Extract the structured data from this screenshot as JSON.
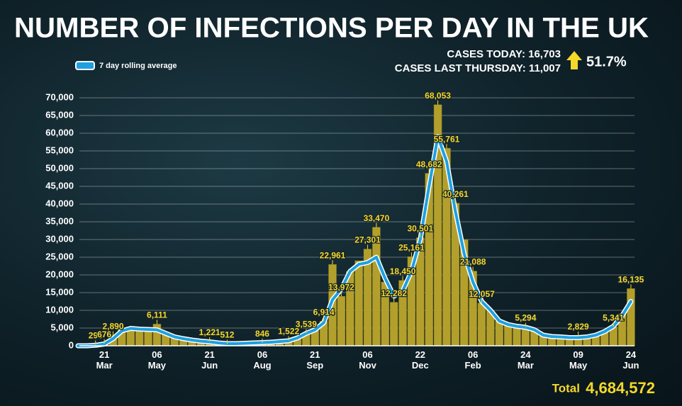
{
  "chart_data": {
    "type": "bar-line",
    "title": "NUMBER OF INFECTIONS PER DAY IN THE UK",
    "cases_today": "CASES TODAY: 16,703",
    "cases_last_thursday": "CASES LAST THURSDAY: 11,007",
    "change": "51.7%",
    "total_label": "Total",
    "total": "4,684,572",
    "categories": [
      null,
      null,
      null,
      "21 Mar",
      null,
      null,
      null,
      null,
      null,
      "06 May",
      null,
      null,
      null,
      null,
      null,
      "21 Jun",
      null,
      null,
      null,
      null,
      null,
      "06 Aug",
      null,
      null,
      null,
      null,
      null,
      "21 Sep",
      null,
      null,
      null,
      null,
      null,
      "06 Nov",
      null,
      null,
      null,
      null,
      null,
      "22 Dec",
      null,
      null,
      null,
      null,
      null,
      "06 Feb",
      null,
      null,
      null,
      null,
      null,
      "24 Mar",
      null,
      null,
      null,
      null,
      null,
      "09 May",
      null,
      null,
      null,
      null,
      null,
      "24 Jun"
    ],
    "series": [
      {
        "name": "Daily cases",
        "color": "#b3a02c",
        "values": [
          0,
          10,
          296,
          676,
          2890,
          4800,
          5000,
          4600,
          4500,
          6111,
          3242,
          2400,
          1800,
          1500,
          1300,
          1221,
          800,
          512,
          600,
          700,
          800,
          846,
          1000,
          1200,
          1522,
          2500,
          3539,
          4500,
          6914,
          22961,
          13972,
          21000,
          24000,
          27301,
          33470,
          18000,
          12282,
          18450,
          25161,
          30501,
          48682,
          68053,
          55761,
          40261,
          30000,
          21088,
          12057,
          10000,
          7000,
          6000,
          5500,
          5294,
          4500,
          3000,
          2700,
          2500,
          2300,
          2829,
          2500,
          3000,
          4000,
          5341,
          9000,
          16135
        ],
        "value_labels": [
          null,
          null,
          "296",
          "676",
          "2,890",
          null,
          null,
          null,
          null,
          "6,111",
          null,
          null,
          null,
          null,
          null,
          "1,221",
          null,
          "512",
          null,
          null,
          null,
          "846",
          null,
          null,
          "1,522",
          null,
          "3,539",
          null,
          "6,914",
          "22,961",
          "13,972",
          null,
          null,
          "27,301",
          "33,470",
          null,
          "12,282",
          "18,450",
          "25,161",
          "30,501",
          "48,682",
          "68,053",
          "55,761",
          "40,261",
          null,
          "21,088",
          "12,057",
          null,
          null,
          null,
          null,
          "5,294",
          null,
          null,
          null,
          null,
          null,
          "2,829",
          null,
          null,
          null,
          "5,341",
          null,
          "16,135"
        ]
      },
      {
        "name": "7 day rolling average",
        "color": "#1ea0e0",
        "values": [
          0,
          5,
          150,
          500,
          2000,
          4200,
          4900,
          4700,
          4600,
          4500,
          3500,
          2500,
          2000,
          1600,
          1300,
          1100,
          800,
          600,
          600,
          700,
          800,
          900,
          1000,
          1200,
          1400,
          2200,
          3500,
          4500,
          6500,
          13000,
          16000,
          21000,
          23000,
          23500,
          25000,
          19000,
          14000,
          15500,
          21000,
          30000,
          45000,
          59000,
          52000,
          38000,
          26000,
          18000,
          12500,
          10000,
          7000,
          6000,
          5500,
          5200,
          4500,
          3000,
          2600,
          2500,
          2300,
          2300,
          2500,
          3000,
          4000,
          5500,
          8500,
          12500
        ]
      }
    ],
    "ylim": [
      0,
      70000
    ],
    "yticks": [
      0,
      {
        "value": 5000,
        "label": "5,000"
      },
      {
        "value": 10000,
        "label": "10,000"
      },
      {
        "value": 15000,
        "label": "15,000"
      },
      {
        "value": 20000,
        "label": "20,000"
      },
      {
        "value": 25000,
        "label": "25,000"
      },
      {
        "value": 30000,
        "label": "30,000"
      },
      {
        "value": 35000,
        "label": "35,000"
      },
      {
        "value": 40000,
        "label": "40,000"
      },
      {
        "value": 45000,
        "label": "45,000"
      },
      {
        "value": 50000,
        "label": "50,000"
      },
      {
        "value": 55000,
        "label": "55,000"
      },
      {
        "value": 60000,
        "label": "60,000"
      },
      {
        "value": 65000,
        "label": "65,000"
      },
      {
        "value": 70000,
        "label": "70,000"
      }
    ],
    "grid": true
  }
}
